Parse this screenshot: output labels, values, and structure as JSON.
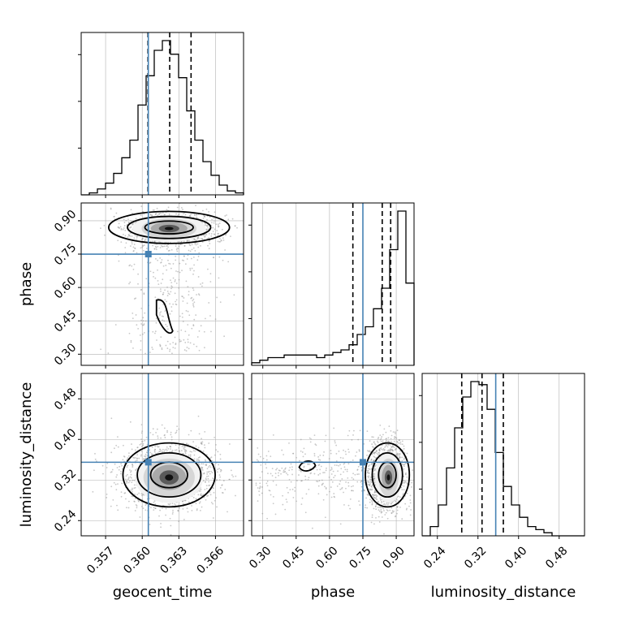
{
  "colors": {
    "truth": "#4682b4",
    "hist": "#000000",
    "scatter": "#9a9a9a",
    "grid": "#b0b0b0"
  },
  "chart_data": {
    "type": "corner",
    "parameters": [
      "geocent_time",
      "phase",
      "luminosity_distance"
    ],
    "truths": {
      "geocent_time": 0.3605,
      "phase": 0.75,
      "luminosity_distance": 0.355
    },
    "quantiles": {
      "geocent_time": [
        0.36047,
        0.36225,
        0.364
      ],
      "phase": [
        0.705,
        0.837,
        0.875
      ],
      "luminosity_distance": [
        0.288,
        0.328,
        0.37
      ]
    },
    "axes": {
      "geocent_time": {
        "range": [
          0.355,
          0.3683
        ],
        "ticks": [
          0.357,
          0.36,
          0.363,
          0.366
        ],
        "tick_labels": [
          "0.357",
          "0.360",
          "0.363",
          "0.366"
        ]
      },
      "phase": {
        "range": [
          0.25,
          0.98
        ],
        "ticks": [
          0.3,
          0.45,
          0.6,
          0.75,
          0.9
        ],
        "tick_labels": [
          "0.30",
          "0.45",
          "0.60",
          "0.75",
          "0.90"
        ]
      },
      "luminosity_distance": {
        "range": [
          0.21,
          0.53
        ],
        "ticks": [
          0.24,
          0.32,
          0.4,
          0.48
        ],
        "tick_labels": [
          "0.24",
          "0.32",
          "0.40",
          "0.48"
        ]
      }
    },
    "histograms": {
      "geocent_time": {
        "range": [
          0.355,
          0.3683
        ],
        "counts": [
          0,
          1,
          3,
          6,
          11,
          19,
          28,
          46,
          61,
          74,
          79,
          72,
          60,
          43,
          28,
          17,
          10,
          5,
          2,
          1
        ]
      },
      "phase": {
        "range": [
          0.25,
          0.98
        ],
        "counts": [
          1,
          2,
          3,
          3,
          4,
          4,
          4,
          4,
          3,
          4,
          5,
          6,
          8,
          12,
          15,
          22,
          30,
          45,
          60,
          32
        ]
      },
      "luminosity_distance": {
        "range": [
          0.21,
          0.53
        ],
        "counts": [
          0,
          3,
          10,
          22,
          35,
          45,
          50,
          49,
          41,
          27,
          16,
          10,
          6,
          3,
          2,
          1,
          0,
          0,
          0,
          0
        ]
      }
    },
    "grid": true,
    "xlabels": [
      "geocent_time",
      "phase",
      "luminosity_distance"
    ],
    "ylabels": [
      "",
      "phase",
      "luminosity_distance"
    ]
  }
}
